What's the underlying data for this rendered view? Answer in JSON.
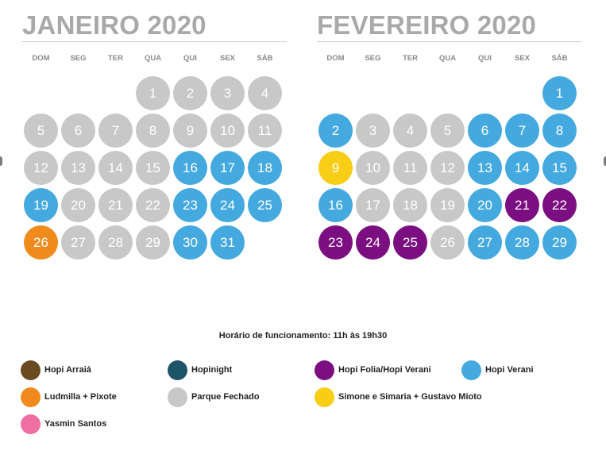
{
  "colors": {
    "closed": "#c8c8c8",
    "hopi_verani": "#43a9de",
    "hopi_folia": "#7b0f82",
    "ludmilla": "#f08a1c",
    "simone": "#f7cd16",
    "hopi_arraia": "#6a4a1f",
    "hopinight": "#1e5468",
    "yasmin": "#ef6fa3"
  },
  "weekdays": [
    "DOM",
    "SEG",
    "TER",
    "QUA",
    "QUI",
    "SEX",
    "SÁB"
  ],
  "months": [
    {
      "title": "JANEIRO 2020",
      "start_offset": 3,
      "days": [
        {
          "n": "1",
          "status": "closed"
        },
        {
          "n": "2",
          "status": "closed"
        },
        {
          "n": "3",
          "status": "closed"
        },
        {
          "n": "4",
          "status": "closed"
        },
        {
          "n": "5",
          "status": "closed"
        },
        {
          "n": "6",
          "status": "closed"
        },
        {
          "n": "7",
          "status": "closed"
        },
        {
          "n": "8",
          "status": "closed"
        },
        {
          "n": "9",
          "status": "closed"
        },
        {
          "n": "10",
          "status": "closed"
        },
        {
          "n": "11",
          "status": "closed"
        },
        {
          "n": "12",
          "status": "closed"
        },
        {
          "n": "13",
          "status": "closed"
        },
        {
          "n": "14",
          "status": "closed"
        },
        {
          "n": "15",
          "status": "closed"
        },
        {
          "n": "16",
          "status": "hopi_verani"
        },
        {
          "n": "17",
          "status": "hopi_verani"
        },
        {
          "n": "18",
          "status": "hopi_verani"
        },
        {
          "n": "19",
          "status": "hopi_verani"
        },
        {
          "n": "20",
          "status": "closed"
        },
        {
          "n": "21",
          "status": "closed"
        },
        {
          "n": "22",
          "status": "closed"
        },
        {
          "n": "23",
          "status": "hopi_verani"
        },
        {
          "n": "24",
          "status": "hopi_verani"
        },
        {
          "n": "25",
          "status": "hopi_verani"
        },
        {
          "n": "26",
          "status": "ludmilla"
        },
        {
          "n": "27",
          "status": "closed"
        },
        {
          "n": "28",
          "status": "closed"
        },
        {
          "n": "29",
          "status": "closed"
        },
        {
          "n": "30",
          "status": "hopi_verani"
        },
        {
          "n": "31",
          "status": "hopi_verani"
        }
      ]
    },
    {
      "title": "FEVEREIRO 2020",
      "start_offset": 6,
      "days": [
        {
          "n": "1",
          "status": "hopi_verani"
        },
        {
          "n": "2",
          "status": "hopi_verani"
        },
        {
          "n": "3",
          "status": "closed"
        },
        {
          "n": "4",
          "status": "closed"
        },
        {
          "n": "5",
          "status": "closed"
        },
        {
          "n": "6",
          "status": "hopi_verani"
        },
        {
          "n": "7",
          "status": "hopi_verani"
        },
        {
          "n": "8",
          "status": "hopi_verani"
        },
        {
          "n": "9",
          "status": "simone"
        },
        {
          "n": "10",
          "status": "closed"
        },
        {
          "n": "11",
          "status": "closed"
        },
        {
          "n": "12",
          "status": "closed"
        },
        {
          "n": "13",
          "status": "hopi_verani"
        },
        {
          "n": "14",
          "status": "hopi_verani"
        },
        {
          "n": "15",
          "status": "hopi_verani"
        },
        {
          "n": "16",
          "status": "hopi_verani"
        },
        {
          "n": "17",
          "status": "closed"
        },
        {
          "n": "18",
          "status": "closed"
        },
        {
          "n": "19",
          "status": "closed"
        },
        {
          "n": "20",
          "status": "hopi_verani"
        },
        {
          "n": "21",
          "status": "hopi_folia"
        },
        {
          "n": "22",
          "status": "hopi_folia"
        },
        {
          "n": "23",
          "status": "hopi_folia"
        },
        {
          "n": "24",
          "status": "hopi_folia"
        },
        {
          "n": "25",
          "status": "hopi_folia"
        },
        {
          "n": "26",
          "status": "closed"
        },
        {
          "n": "27",
          "status": "hopi_verani"
        },
        {
          "n": "28",
          "status": "hopi_verani"
        },
        {
          "n": "29",
          "status": "hopi_verani"
        }
      ]
    }
  ],
  "hours_text": "Horário de funcionamento: 11h às 19h30",
  "legend": [
    {
      "label": "Hopi Arraiá",
      "color": "#6a4a1f"
    },
    {
      "label": "Hopinight",
      "color": "#1e5468"
    },
    {
      "label": "Hopi Folia/Hopi Verani",
      "color": "#7b0f82"
    },
    {
      "label": "Hopi Verani",
      "color": "#43a9de"
    },
    {
      "label": "Ludmilla + Pixote",
      "color": "#f08a1c"
    },
    {
      "label": "Parque Fechado",
      "color": "#c8c8c8"
    },
    {
      "label": "Simone e Simaria + Gustavo Mioto",
      "color": "#f7cd16"
    },
    {
      "label": "Yasmin Santos",
      "color": "#ef6fa3"
    }
  ]
}
